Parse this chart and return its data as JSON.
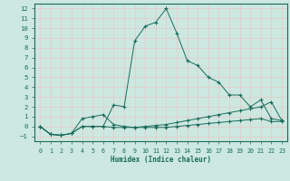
{
  "xlabel": "Humidex (Indice chaleur)",
  "ylabel": "",
  "bg_color": "#cce8e0",
  "grid_color": "#e8c8c8",
  "line_color": "#1a6b5a",
  "xlim": [
    -0.5,
    23.5
  ],
  "ylim": [
    -1.5,
    12.5
  ],
  "xticks": [
    0,
    1,
    2,
    3,
    4,
    5,
    6,
    7,
    8,
    9,
    10,
    11,
    12,
    13,
    14,
    15,
    16,
    17,
    18,
    19,
    20,
    21,
    22,
    23
  ],
  "yticks": [
    -1,
    0,
    1,
    2,
    3,
    4,
    5,
    6,
    7,
    8,
    9,
    10,
    11,
    12
  ],
  "series": [
    {
      "x": [
        0,
        1,
        2,
        3,
        4,
        5,
        6,
        7,
        8,
        9,
        10,
        11,
        12,
        13,
        14,
        15,
        16,
        17,
        18,
        19,
        20,
        21,
        22,
        23
      ],
      "y": [
        0.0,
        -0.8,
        -0.9,
        -0.7,
        0.8,
        1.0,
        1.2,
        0.2,
        0.0,
        -0.1,
        -0.1,
        -0.1,
        -0.1,
        -0.0,
        0.1,
        0.2,
        0.3,
        0.4,
        0.5,
        0.6,
        0.7,
        0.8,
        0.5,
        0.5
      ]
    },
    {
      "x": [
        0,
        1,
        2,
        3,
        4,
        5,
        6,
        7,
        8,
        9,
        10,
        11,
        12,
        13,
        14,
        15,
        16,
        17,
        18,
        19,
        20,
        21,
        22,
        23
      ],
      "y": [
        0.0,
        -0.8,
        -0.9,
        -0.7,
        0.0,
        0.0,
        0.0,
        2.2,
        2.0,
        8.7,
        10.2,
        10.6,
        12.0,
        9.5,
        6.7,
        6.2,
        5.0,
        4.5,
        3.2,
        3.2,
        2.0,
        2.7,
        0.8,
        0.6
      ]
    },
    {
      "x": [
        0,
        1,
        2,
        3,
        4,
        5,
        6,
        7,
        8,
        9,
        10,
        11,
        12,
        13,
        14,
        15,
        16,
        17,
        18,
        19,
        20,
        21,
        22,
        23
      ],
      "y": [
        0.0,
        -0.8,
        -0.9,
        -0.7,
        0.0,
        0.0,
        0.0,
        -0.1,
        -0.1,
        -0.1,
        0.0,
        0.1,
        0.2,
        0.4,
        0.6,
        0.8,
        1.0,
        1.2,
        1.4,
        1.6,
        1.8,
        2.0,
        2.5,
        0.6
      ]
    }
  ]
}
